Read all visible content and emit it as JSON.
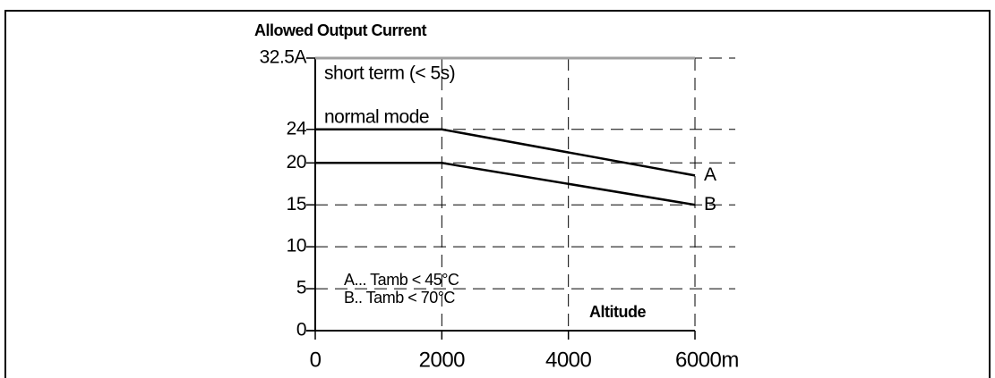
{
  "chart_data": {
    "type": "line",
    "title": "Allowed Output Current",
    "x_label": "Altitude",
    "x": [
      0,
      2000,
      6000
    ],
    "series": [
      {
        "name": "short term (< 5s)",
        "color": "#a0a0a0",
        "values": [
          32.5,
          32.5,
          32.5
        ]
      },
      {
        "name": "A",
        "color": "#000000",
        "values": [
          24,
          24,
          18.5
        ]
      },
      {
        "name": "B",
        "color": "#000000",
        "values": [
          20,
          20,
          15
        ]
      }
    ],
    "annotations": [
      "normal mode",
      "A... Tamb < 45°C",
      "B.. Tamb < 70°C"
    ],
    "xlim": [
      0,
      6000
    ],
    "xticks": [
      0,
      2000,
      4000,
      {
        "value": 6000,
        "label": "6000m"
      }
    ],
    "ylim": [
      0,
      32.5
    ],
    "yticks": [
      0,
      5,
      10,
      15,
      20,
      24,
      {
        "value": 32.5,
        "label": "32.5A"
      }
    ],
    "grid": true
  }
}
